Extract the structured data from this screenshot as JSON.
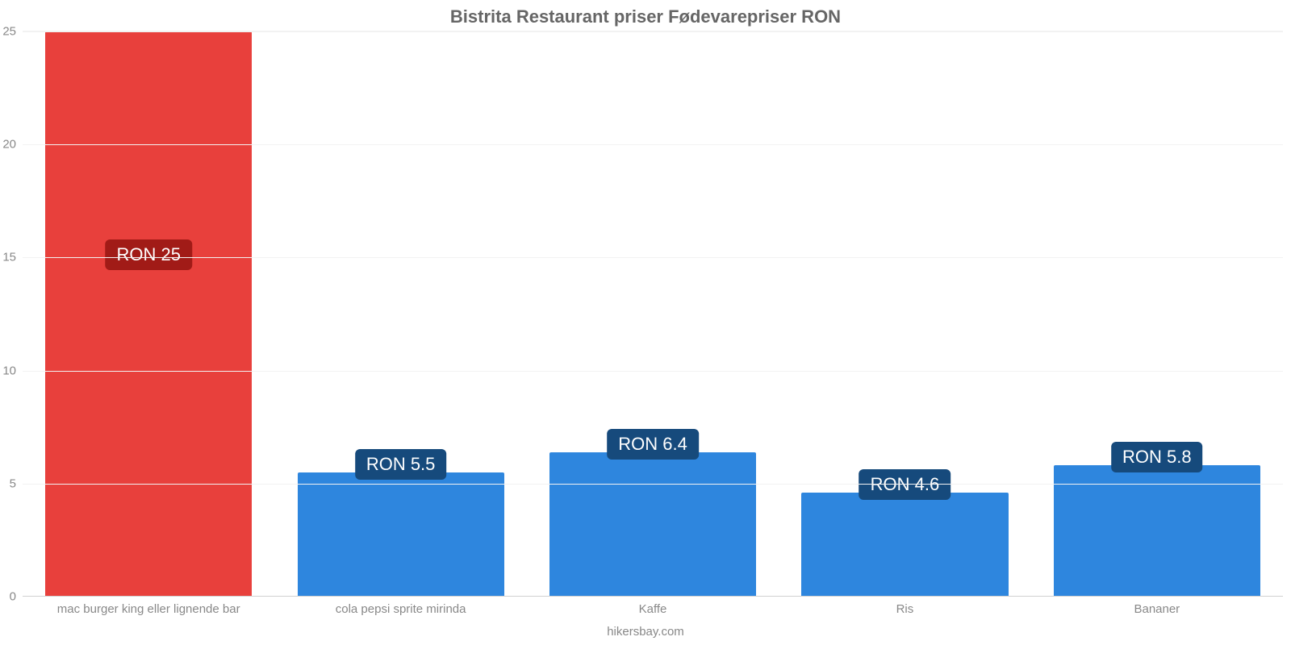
{
  "chart": {
    "type": "bar",
    "title": "Bistrita Restaurant priser Fødevarepriser RON",
    "title_fontsize": 22,
    "title_color": "#666666",
    "background_color": "#ffffff",
    "grid_color": "#f2f2f2",
    "baseline_color": "#d0d0d0",
    "axis_label_color": "#888888",
    "axis_label_fontsize": 15,
    "ylim": [
      0,
      25
    ],
    "ytick_step": 5,
    "yticks": [
      0,
      5,
      10,
      15,
      20,
      25
    ],
    "bar_width_pct": 82,
    "categories": [
      "mac burger king eller lignende bar",
      "cola pepsi sprite mirinda",
      "Kaffe",
      "Ris",
      "Bananer"
    ],
    "values": [
      25,
      5.5,
      6.4,
      4.6,
      5.8
    ],
    "value_labels": [
      "RON 25",
      "RON 5.5",
      "RON 6.4",
      "RON 4.6",
      "RON 5.8"
    ],
    "bar_colors": [
      "#e8403c",
      "#2e86de",
      "#2e86de",
      "#2e86de",
      "#2e86de"
    ],
    "badge_colors": [
      "#a11b17",
      "#164a7c",
      "#164a7c",
      "#164a7c",
      "#164a7c"
    ],
    "badge_text_color": "#ffffff",
    "badge_fontsize": 22,
    "footer": "hikersbay.com"
  }
}
